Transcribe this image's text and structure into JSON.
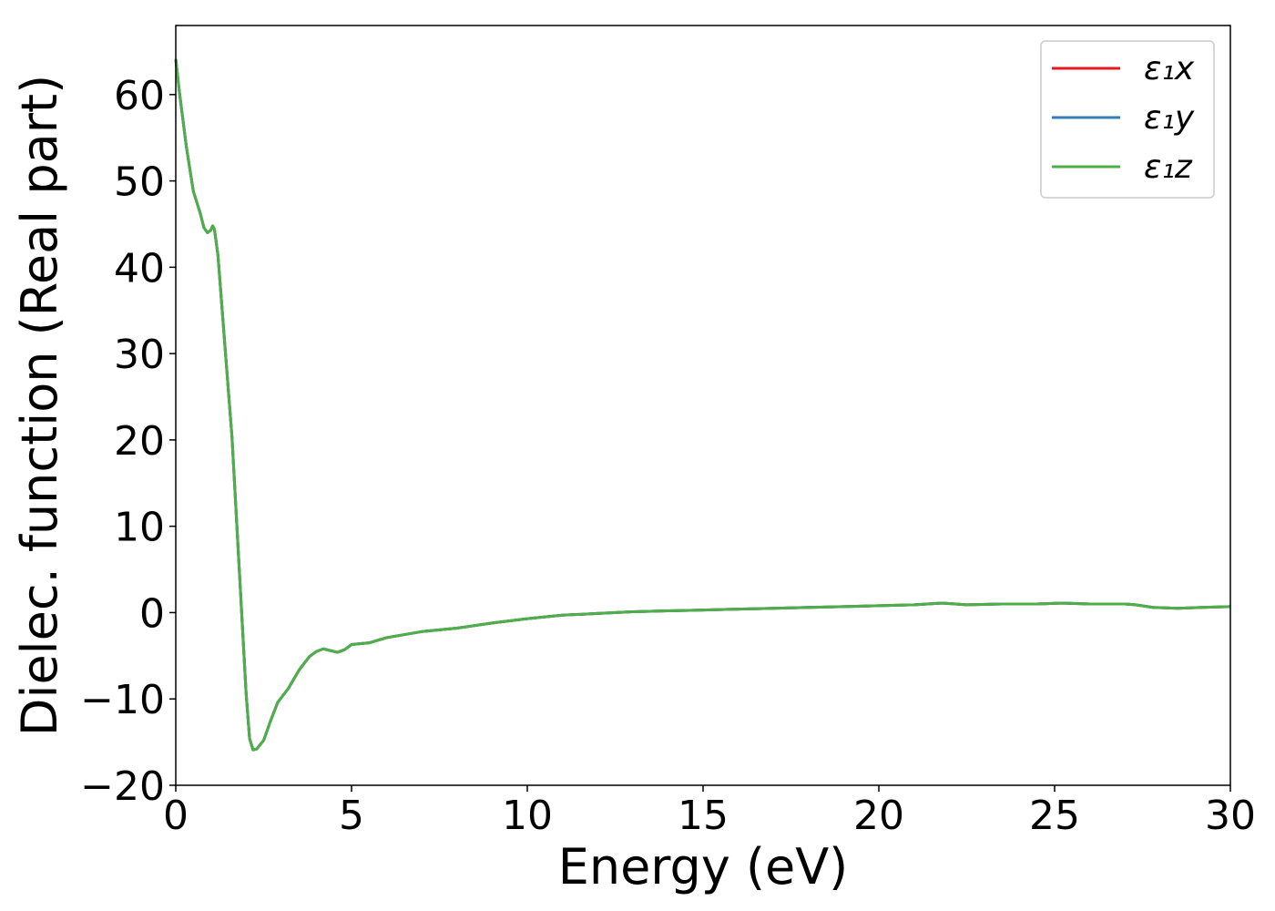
{
  "chart_data": {
    "type": "line",
    "xlabel": "Energy (eV)",
    "ylabel": "Dielec. function (Real part)",
    "x": [
      0,
      0.1,
      0.3,
      0.5,
      0.7,
      0.8,
      0.9,
      1.0,
      1.05,
      1.1,
      1.2,
      1.4,
      1.6,
      1.8,
      2.0,
      2.1,
      2.2,
      2.3,
      2.5,
      2.7,
      2.9,
      3.2,
      3.5,
      3.8,
      4.0,
      4.2,
      4.6,
      4.8,
      5.0,
      5.5,
      6,
      7,
      8,
      9,
      10,
      11,
      12,
      13,
      14,
      15,
      16,
      17,
      18,
      19,
      20,
      21,
      21.8,
      22.5,
      23.5,
      24.5,
      25.2,
      26,
      27,
      27.3,
      27.8,
      28.5,
      29.2,
      30
    ],
    "series": [
      {
        "name": "ε₁x",
        "color": "#e41a1c",
        "values": [
          64.1,
          60.4,
          54,
          48.8,
          46.2,
          44.6,
          44,
          44.3,
          44.8,
          44.4,
          41.4,
          30.8,
          20.3,
          5.5,
          -9.3,
          -14.6,
          -15.9,
          -15.8,
          -14.8,
          -12.5,
          -10.4,
          -8.8,
          -6.7,
          -5.1,
          -4.5,
          -4.2,
          -4.6,
          -4.3,
          -3.7,
          -3.5,
          -2.9,
          -2.2,
          -1.8,
          -1.2,
          -0.7,
          -0.3,
          -0.1,
          0.1,
          0.2,
          0.3,
          0.4,
          0.5,
          0.6,
          0.7,
          0.8,
          0.9,
          1.1,
          0.9,
          1.0,
          1.0,
          1.1,
          1.0,
          1.0,
          0.9,
          0.6,
          0.5,
          0.6,
          0.7
        ]
      },
      {
        "name": "ε₁y",
        "color": "#377eb8",
        "values": [
          64.1,
          60.4,
          54,
          48.8,
          46.2,
          44.6,
          44,
          44.3,
          44.8,
          44.4,
          41.4,
          30.8,
          20.3,
          5.5,
          -9.3,
          -14.6,
          -15.9,
          -15.8,
          -14.8,
          -12.5,
          -10.4,
          -8.8,
          -6.7,
          -5.1,
          -4.5,
          -4.2,
          -4.6,
          -4.3,
          -3.7,
          -3.5,
          -2.9,
          -2.2,
          -1.8,
          -1.2,
          -0.7,
          -0.3,
          -0.1,
          0.1,
          0.2,
          0.3,
          0.4,
          0.5,
          0.6,
          0.7,
          0.8,
          0.9,
          1.1,
          0.9,
          1.0,
          1.0,
          1.1,
          1.0,
          1.0,
          0.9,
          0.6,
          0.5,
          0.6,
          0.7
        ]
      },
      {
        "name": "ε₁z",
        "color": "#4daf4a",
        "values": [
          64.1,
          60.4,
          54,
          48.8,
          46.2,
          44.6,
          44,
          44.3,
          44.8,
          44.4,
          41.4,
          30.8,
          20.3,
          5.5,
          -9.3,
          -14.6,
          -15.9,
          -15.8,
          -14.8,
          -12.5,
          -10.4,
          -8.8,
          -6.7,
          -5.1,
          -4.5,
          -4.2,
          -4.6,
          -4.3,
          -3.7,
          -3.5,
          -2.9,
          -2.2,
          -1.8,
          -1.2,
          -0.7,
          -0.3,
          -0.1,
          0.1,
          0.2,
          0.3,
          0.4,
          0.5,
          0.6,
          0.7,
          0.8,
          0.9,
          1.1,
          0.9,
          1.0,
          1.0,
          1.1,
          1.0,
          1.0,
          0.9,
          0.6,
          0.5,
          0.6,
          0.7
        ]
      }
    ],
    "xlim": [
      0,
      30
    ],
    "xticks": [
      0,
      5,
      10,
      15,
      20,
      25,
      30
    ],
    "ylim": [
      -20,
      68
    ],
    "yticks": [
      {
        "value": -20,
        "label": "−20"
      },
      {
        "value": -10,
        "label": "−10"
      },
      0,
      10,
      20,
      30,
      40,
      50,
      60
    ],
    "legend": "upper right",
    "grid": false
  }
}
